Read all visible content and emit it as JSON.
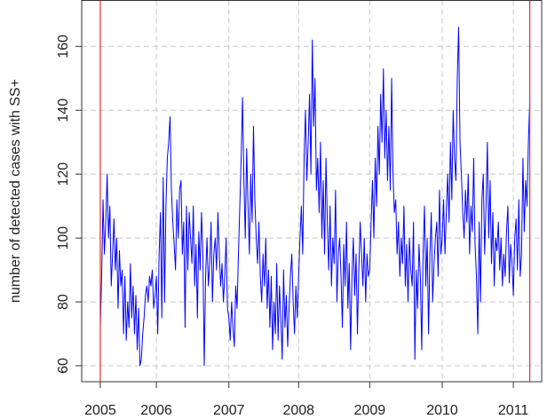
{
  "chart_data": {
    "type": "line",
    "y_label": "number of detected cases with SS+",
    "color": "#0000ff",
    "x": [
      1,
      2,
      3,
      4,
      5,
      6,
      7,
      8,
      9,
      10,
      11,
      12,
      13,
      14,
      15,
      16,
      17,
      18,
      19,
      20,
      21,
      22,
      23,
      24,
      25,
      26,
      27,
      28,
      29,
      30,
      31,
      32,
      33,
      34,
      35,
      36,
      37,
      38,
      39,
      40,
      41,
      42,
      43,
      44,
      45,
      46,
      47,
      48,
      49,
      50,
      51,
      52,
      53,
      54,
      55,
      56,
      57,
      58,
      59,
      60,
      61,
      62,
      63,
      64,
      65,
      66,
      67,
      68,
      69,
      70,
      71,
      72,
      73,
      74,
      75,
      76,
      77,
      78,
      79,
      80,
      81,
      82,
      83,
      84,
      85,
      86,
      87,
      88,
      89,
      90,
      91,
      92,
      93,
      94,
      95,
      96,
      97,
      98,
      99,
      100,
      101,
      102,
      103,
      104,
      105,
      106,
      107,
      108,
      109,
      110,
      111,
      112,
      113,
      114,
      115,
      116,
      117,
      118,
      119,
      120,
      121,
      122,
      123,
      124,
      125,
      126,
      127,
      128,
      129,
      130,
      131,
      132,
      133,
      134,
      135,
      136,
      137,
      138,
      139,
      140,
      141,
      142,
      143,
      144,
      145,
      146,
      147,
      148,
      149,
      150,
      151,
      152,
      153,
      154,
      155,
      156,
      157,
      158,
      159,
      160,
      161,
      162,
      163,
      164,
      165,
      166,
      167,
      168,
      169,
      170,
      171,
      172,
      173,
      174,
      175,
      176,
      177,
      178,
      179,
      180,
      181,
      182,
      183,
      184,
      185,
      186,
      187,
      188,
      189,
      190,
      191,
      192,
      193,
      194,
      195,
      196,
      197,
      198,
      199,
      200,
      201,
      202,
      203,
      204,
      205,
      206,
      207,
      208,
      209,
      210,
      211,
      212,
      213,
      214,
      215,
      216,
      217,
      218,
      219,
      220,
      221,
      222,
      223,
      224,
      225,
      226,
      227,
      228,
      229,
      230,
      231,
      232,
      233,
      234,
      235,
      236,
      237,
      238,
      239,
      240,
      241,
      242,
      243,
      244,
      245,
      246,
      247,
      248,
      249,
      250,
      251,
      252,
      253,
      254,
      255,
      256,
      257,
      258,
      259,
      260,
      261,
      262,
      263,
      264,
      265,
      266,
      267,
      268,
      269,
      270,
      271,
      272,
      273,
      274,
      275,
      276,
      277,
      278,
      279,
      280,
      281,
      282,
      283,
      284,
      285,
      286,
      287,
      288,
      289,
      290,
      291,
      292,
      293,
      294,
      295,
      296,
      297,
      298,
      299,
      300,
      301,
      302,
      303,
      304,
      305,
      306,
      307,
      308,
      309,
      310,
      311,
      312,
      313,
      314,
      315
    ],
    "values": [
      72,
      88,
      112,
      95,
      105,
      120,
      100,
      110,
      85,
      95,
      106,
      90,
      100,
      78,
      96,
      85,
      90,
      70,
      88,
      68,
      80,
      72,
      92,
      75,
      85,
      70,
      82,
      65,
      78,
      60,
      62,
      70,
      75,
      82,
      85,
      80,
      88,
      85,
      90,
      78,
      82,
      88,
      70,
      95,
      108,
      75,
      119,
      80,
      110,
      125,
      130,
      138,
      115,
      105,
      98,
      90,
      112,
      100,
      115,
      118,
      95,
      105,
      72,
      110,
      90,
      108,
      100,
      92,
      110,
      85,
      98,
      75,
      102,
      90,
      108,
      95,
      60,
      88,
      100,
      85,
      92,
      105,
      80,
      95,
      100,
      90,
      108,
      95,
      85,
      92,
      80,
      88,
      100,
      78,
      75,
      68,
      80,
      72,
      66,
      85,
      78,
      95,
      110,
      125,
      144,
      118,
      100,
      128,
      110,
      95,
      120,
      105,
      135,
      112,
      100,
      92,
      105,
      88,
      80,
      95,
      85,
      100,
      78,
      90,
      72,
      88,
      65,
      80,
      70,
      92,
      68,
      85,
      75,
      62,
      90,
      72,
      82,
      66,
      78,
      88,
      95,
      80,
      70,
      85,
      75,
      88,
      100,
      110,
      95,
      125,
      140,
      118,
      130,
      145,
      120,
      162,
      135,
      150,
      115,
      125,
      108,
      130,
      100,
      118,
      95,
      125,
      105,
      90,
      110,
      85,
      100,
      92,
      115,
      80,
      95,
      100,
      88,
      72,
      98,
      85,
      105,
      78,
      92,
      65,
      88,
      100,
      82,
      95,
      70,
      90,
      105,
      95,
      85,
      100,
      80,
      95,
      88,
      90,
      105,
      118,
      100,
      125,
      110,
      135,
      120,
      145,
      130,
      153,
      125,
      140,
      118,
      135,
      115,
      150,
      120,
      108,
      112,
      95,
      105,
      88,
      100,
      92,
      110,
      85,
      98,
      80,
      100,
      90,
      85,
      105,
      62,
      90,
      78,
      98,
      88,
      65,
      95,
      110,
      85,
      100,
      70,
      95,
      108,
      80,
      92,
      100,
      105,
      88,
      115,
      95,
      100,
      112,
      95,
      108,
      120,
      105,
      130,
      112,
      140,
      125,
      118,
      150,
      166,
      130,
      120,
      108,
      100,
      115,
      105,
      120,
      95,
      110,
      102,
      125,
      98,
      88,
      70,
      105,
      80,
      112,
      120,
      95,
      110,
      130,
      100,
      118,
      92,
      108,
      85,
      100,
      96,
      105,
      90,
      100,
      85,
      95,
      88,
      102,
      110,
      86,
      98,
      92,
      82,
      100,
      106,
      90,
      112,
      88,
      95,
      125,
      102,
      118,
      110,
      130,
      143
    ],
    "vlines": {
      "values": [
        1,
        315
      ],
      "color": "#e8302a"
    },
    "xlim": [
      -12.6,
      323.7
    ],
    "xticks": [
      {
        "value": 1,
        "label": "2005"
      },
      {
        "value": 42,
        "label": "2006"
      },
      {
        "value": 95,
        "label": "2007"
      },
      {
        "value": 146,
        "label": "2008"
      },
      {
        "value": 198,
        "label": "2009"
      },
      {
        "value": 251,
        "label": "2010"
      },
      {
        "value": 303,
        "label": "2011"
      }
    ],
    "ylim": [
      55,
      174.4
    ],
    "yticks": [
      60,
      80,
      100,
      120,
      140,
      160
    ],
    "grid": true
  }
}
